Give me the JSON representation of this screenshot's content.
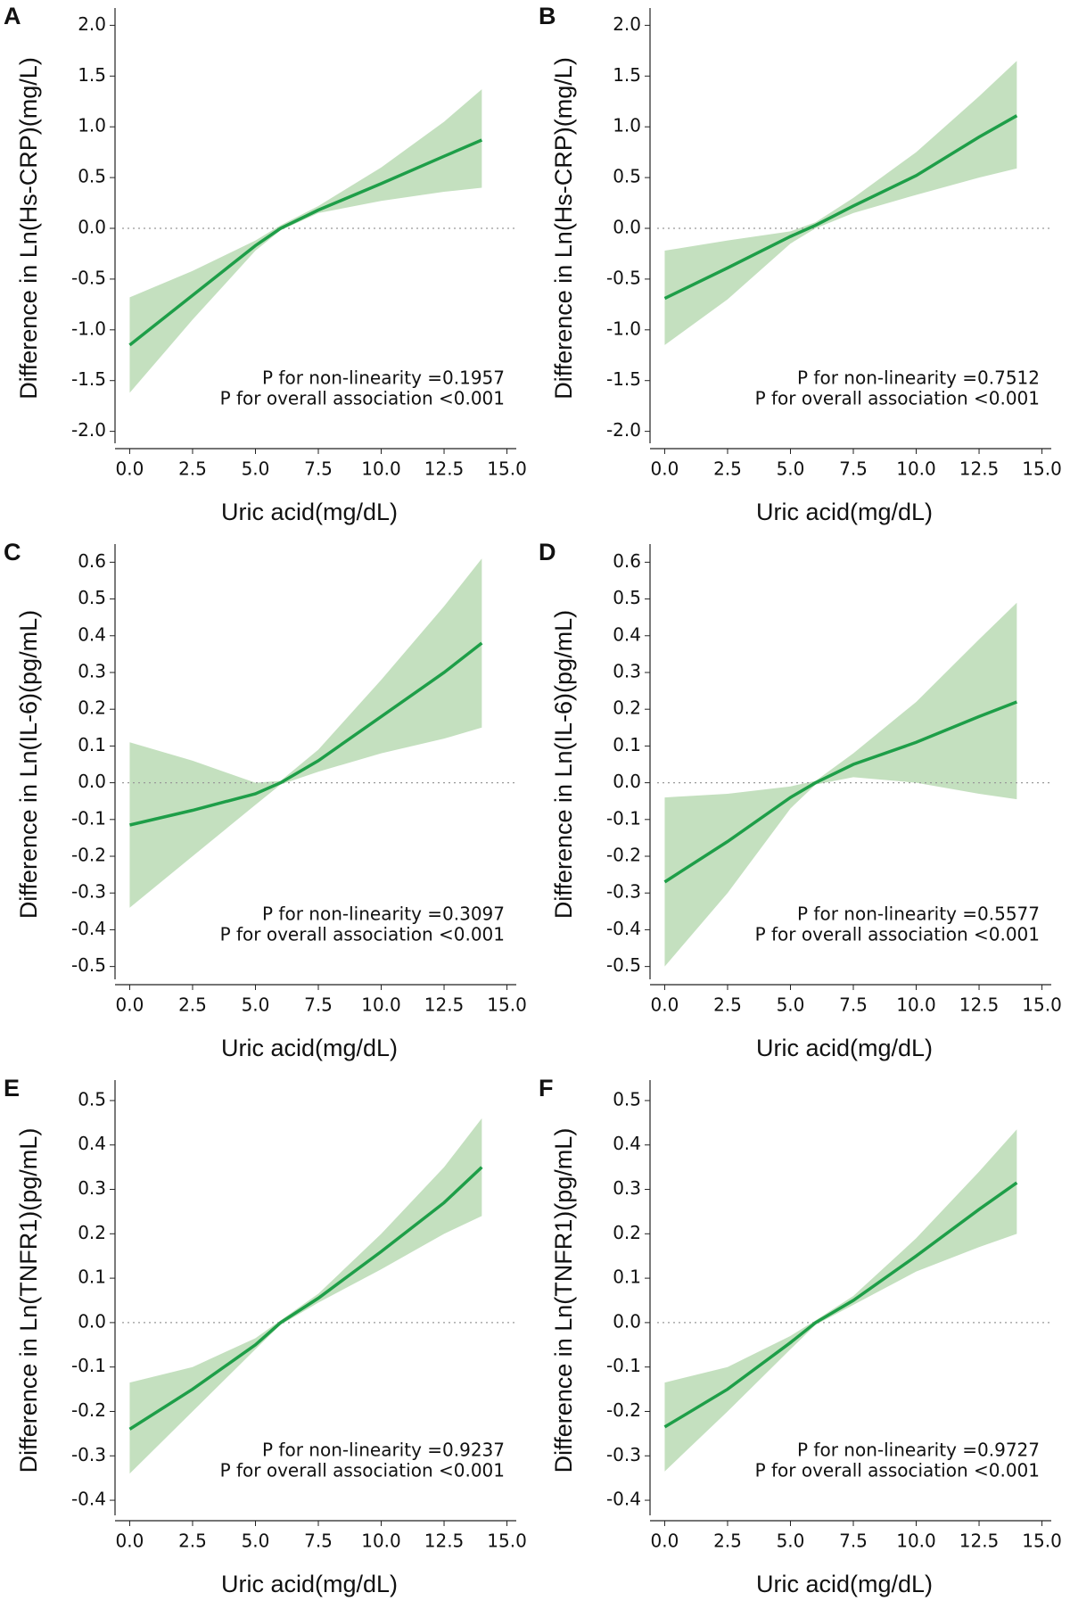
{
  "chart_data": [
    {
      "type": "line",
      "panel_label": "A",
      "y_label": "Difference in Ln(Hs-CRP)(mg/L)",
      "x_label": "Uric acid(mg/dL)",
      "annotations": [
        "P for non-linearity =0.1957",
        "P for overall association <0.001"
      ],
      "x": [
        0,
        2.5,
        5,
        6,
        7.5,
        10,
        12.5,
        14
      ],
      "values": [
        -1.15,
        -0.66,
        -0.17,
        0.0,
        0.18,
        0.44,
        0.71,
        0.87
      ],
      "lower": [
        -1.62,
        -0.9,
        -0.22,
        -0.02,
        0.15,
        0.27,
        0.36,
        0.4
      ],
      "upper": [
        -0.68,
        -0.42,
        -0.12,
        0.03,
        0.22,
        0.6,
        1.05,
        1.37
      ],
      "color": "#1e9e48",
      "band_color": "#c4e0bf",
      "xlim": [
        -0.3,
        15.3
      ],
      "ylim": [
        -2.1,
        2.1
      ],
      "xticks": [
        {
          "value": 0,
          "label": "0.0"
        },
        2.5,
        {
          "value": 5,
          "label": "5.0"
        },
        7.5,
        {
          "value": 10,
          "label": "10.0"
        },
        12.5,
        {
          "value": 15,
          "label": "15.0"
        }
      ],
      "yticks": [
        {
          "value": -2,
          "label": "-2.0"
        },
        -1.5,
        {
          "value": -1,
          "label": "-1.0"
        },
        -0.5,
        {
          "value": 0,
          "label": "0.0"
        },
        0.5,
        {
          "value": 1,
          "label": "1.0"
        },
        1.5,
        {
          "value": 2,
          "label": "2.0"
        }
      ]
    },
    {
      "type": "line",
      "panel_label": "B",
      "y_label": "Difference in Ln(Hs-CRP)(mg/L)",
      "x_label": "Uric acid(mg/dL)",
      "annotations": [
        "P for non-linearity =0.7512",
        "P for overall association <0.001"
      ],
      "x": [
        0,
        2.5,
        5,
        6,
        7.5,
        10,
        12.5,
        14
      ],
      "values": [
        -0.69,
        -0.39,
        -0.08,
        0.03,
        0.22,
        0.52,
        0.9,
        1.11
      ],
      "lower": [
        -1.15,
        -0.7,
        -0.15,
        0.0,
        0.15,
        0.33,
        0.5,
        0.59
      ],
      "upper": [
        -0.22,
        -0.12,
        -0.03,
        0.06,
        0.3,
        0.75,
        1.3,
        1.65
      ],
      "color": "#1e9e48",
      "band_color": "#c4e0bf",
      "xlim": [
        -0.3,
        15.3
      ],
      "ylim": [
        -2.1,
        2.1
      ],
      "xticks": [
        {
          "value": 0,
          "label": "0.0"
        },
        2.5,
        {
          "value": 5,
          "label": "5.0"
        },
        7.5,
        {
          "value": 10,
          "label": "10.0"
        },
        12.5,
        {
          "value": 15,
          "label": "15.0"
        }
      ],
      "yticks": [
        {
          "value": -2,
          "label": "-2.0"
        },
        -1.5,
        {
          "value": -1,
          "label": "-1.0"
        },
        -0.5,
        {
          "value": 0,
          "label": "0.0"
        },
        0.5,
        {
          "value": 1,
          "label": "1.0"
        },
        1.5,
        {
          "value": 2,
          "label": "2.0"
        }
      ]
    },
    {
      "type": "line",
      "panel_label": "C",
      "y_label": "Difference in Ln(IL-6)(pg/mL)",
      "x_label": "Uric acid(mg/dL)",
      "annotations": [
        "P for non-linearity =0.3097",
        "P for overall association <0.001"
      ],
      "x": [
        0,
        2.5,
        5,
        6,
        7.5,
        10,
        12.5,
        14
      ],
      "values": [
        -0.115,
        -0.075,
        -0.03,
        0.0,
        0.06,
        0.18,
        0.3,
        0.38
      ],
      "lower": [
        -0.34,
        -0.2,
        -0.06,
        -0.005,
        0.03,
        0.08,
        0.12,
        0.15
      ],
      "upper": [
        0.11,
        0.06,
        0.0,
        0.005,
        0.09,
        0.28,
        0.48,
        0.61
      ],
      "color": "#1e9e48",
      "band_color": "#c4e0bf",
      "xlim": [
        -0.3,
        15.3
      ],
      "ylim": [
        -0.53,
        0.63
      ],
      "xticks": [
        {
          "value": 0,
          "label": "0.0"
        },
        2.5,
        {
          "value": 5,
          "label": "5.0"
        },
        7.5,
        {
          "value": 10,
          "label": "10.0"
        },
        12.5,
        {
          "value": 15,
          "label": "15.0"
        }
      ],
      "yticks": [
        -0.5,
        -0.4,
        -0.3,
        -0.2,
        -0.1,
        {
          "value": 0,
          "label": "0.0"
        },
        0.1,
        0.2,
        0.3,
        0.4,
        0.5,
        0.6
      ]
    },
    {
      "type": "line",
      "panel_label": "D",
      "y_label": "Difference in Ln(IL-6)(pg/mL)",
      "x_label": "Uric acid(mg/dL)",
      "annotations": [
        "P for non-linearity =0.5577",
        "P for overall association <0.001"
      ],
      "x": [
        0,
        2.5,
        5,
        6,
        7.5,
        10,
        12.5,
        14
      ],
      "values": [
        -0.27,
        -0.16,
        -0.04,
        0.0,
        0.05,
        0.11,
        0.18,
        0.22
      ],
      "lower": [
        -0.5,
        -0.3,
        -0.07,
        -0.005,
        0.015,
        0.0,
        -0.03,
        -0.045
      ],
      "upper": [
        -0.04,
        -0.03,
        -0.01,
        0.005,
        0.08,
        0.22,
        0.39,
        0.49
      ],
      "color": "#1e9e48",
      "band_color": "#c4e0bf",
      "xlim": [
        -0.3,
        15.3
      ],
      "ylim": [
        -0.53,
        0.63
      ],
      "xticks": [
        {
          "value": 0,
          "label": "0.0"
        },
        2.5,
        {
          "value": 5,
          "label": "5.0"
        },
        7.5,
        {
          "value": 10,
          "label": "10.0"
        },
        12.5,
        {
          "value": 15,
          "label": "15.0"
        }
      ],
      "yticks": [
        -0.5,
        -0.4,
        -0.3,
        -0.2,
        -0.1,
        {
          "value": 0,
          "label": "0.0"
        },
        0.1,
        0.2,
        0.3,
        0.4,
        0.5,
        0.6
      ]
    },
    {
      "type": "line",
      "panel_label": "E",
      "y_label": "Difference in Ln(TNFR1)(pg/mL)",
      "x_label": "Uric acid(mg/dL)",
      "annotations": [
        "P for non-linearity =0.9237",
        "P for overall association <0.001"
      ],
      "x": [
        0,
        2.5,
        5,
        6,
        7.5,
        10,
        12.5,
        14
      ],
      "values": [
        -0.24,
        -0.15,
        -0.05,
        0.0,
        0.055,
        0.16,
        0.27,
        0.35
      ],
      "lower": [
        -0.34,
        -0.2,
        -0.06,
        -0.005,
        0.045,
        0.12,
        0.2,
        0.24
      ],
      "upper": [
        -0.135,
        -0.1,
        -0.035,
        0.005,
        0.065,
        0.2,
        0.35,
        0.46
      ],
      "color": "#1e9e48",
      "band_color": "#c4e0bf",
      "xlim": [
        -0.3,
        15.3
      ],
      "ylim": [
        -0.43,
        0.53
      ],
      "xticks": [
        {
          "value": 0,
          "label": "0.0"
        },
        2.5,
        {
          "value": 5,
          "label": "5.0"
        },
        7.5,
        {
          "value": 10,
          "label": "10.0"
        },
        12.5,
        {
          "value": 15,
          "label": "15.0"
        }
      ],
      "yticks": [
        -0.4,
        -0.3,
        -0.2,
        -0.1,
        {
          "value": 0,
          "label": "0.0"
        },
        0.1,
        0.2,
        0.3,
        0.4,
        0.5
      ]
    },
    {
      "type": "line",
      "panel_label": "F",
      "y_label": "Difference in Ln(TNFR1)(pg/mL)",
      "x_label": "Uric acid(mg/dL)",
      "annotations": [
        "P for non-linearity =0.9727",
        "P for overall association <0.001"
      ],
      "x": [
        0,
        2.5,
        5,
        6,
        7.5,
        10,
        12.5,
        14
      ],
      "values": [
        -0.235,
        -0.15,
        -0.045,
        0.0,
        0.05,
        0.15,
        0.255,
        0.315
      ],
      "lower": [
        -0.335,
        -0.2,
        -0.06,
        -0.005,
        0.04,
        0.115,
        0.17,
        0.2
      ],
      "upper": [
        -0.135,
        -0.1,
        -0.03,
        0.005,
        0.06,
        0.19,
        0.34,
        0.435
      ],
      "color": "#1e9e48",
      "band_color": "#c4e0bf",
      "xlim": [
        -0.3,
        15.3
      ],
      "ylim": [
        -0.43,
        0.53
      ],
      "xticks": [
        {
          "value": 0,
          "label": "0.0"
        },
        2.5,
        {
          "value": 5,
          "label": "5.0"
        },
        7.5,
        {
          "value": 10,
          "label": "10.0"
        },
        12.5,
        {
          "value": 15,
          "label": "15.0"
        }
      ],
      "yticks": [
        -0.4,
        -0.3,
        -0.2,
        -0.1,
        {
          "value": 0,
          "label": "0.0"
        },
        0.1,
        0.2,
        0.3,
        0.4,
        0.5
      ]
    }
  ]
}
